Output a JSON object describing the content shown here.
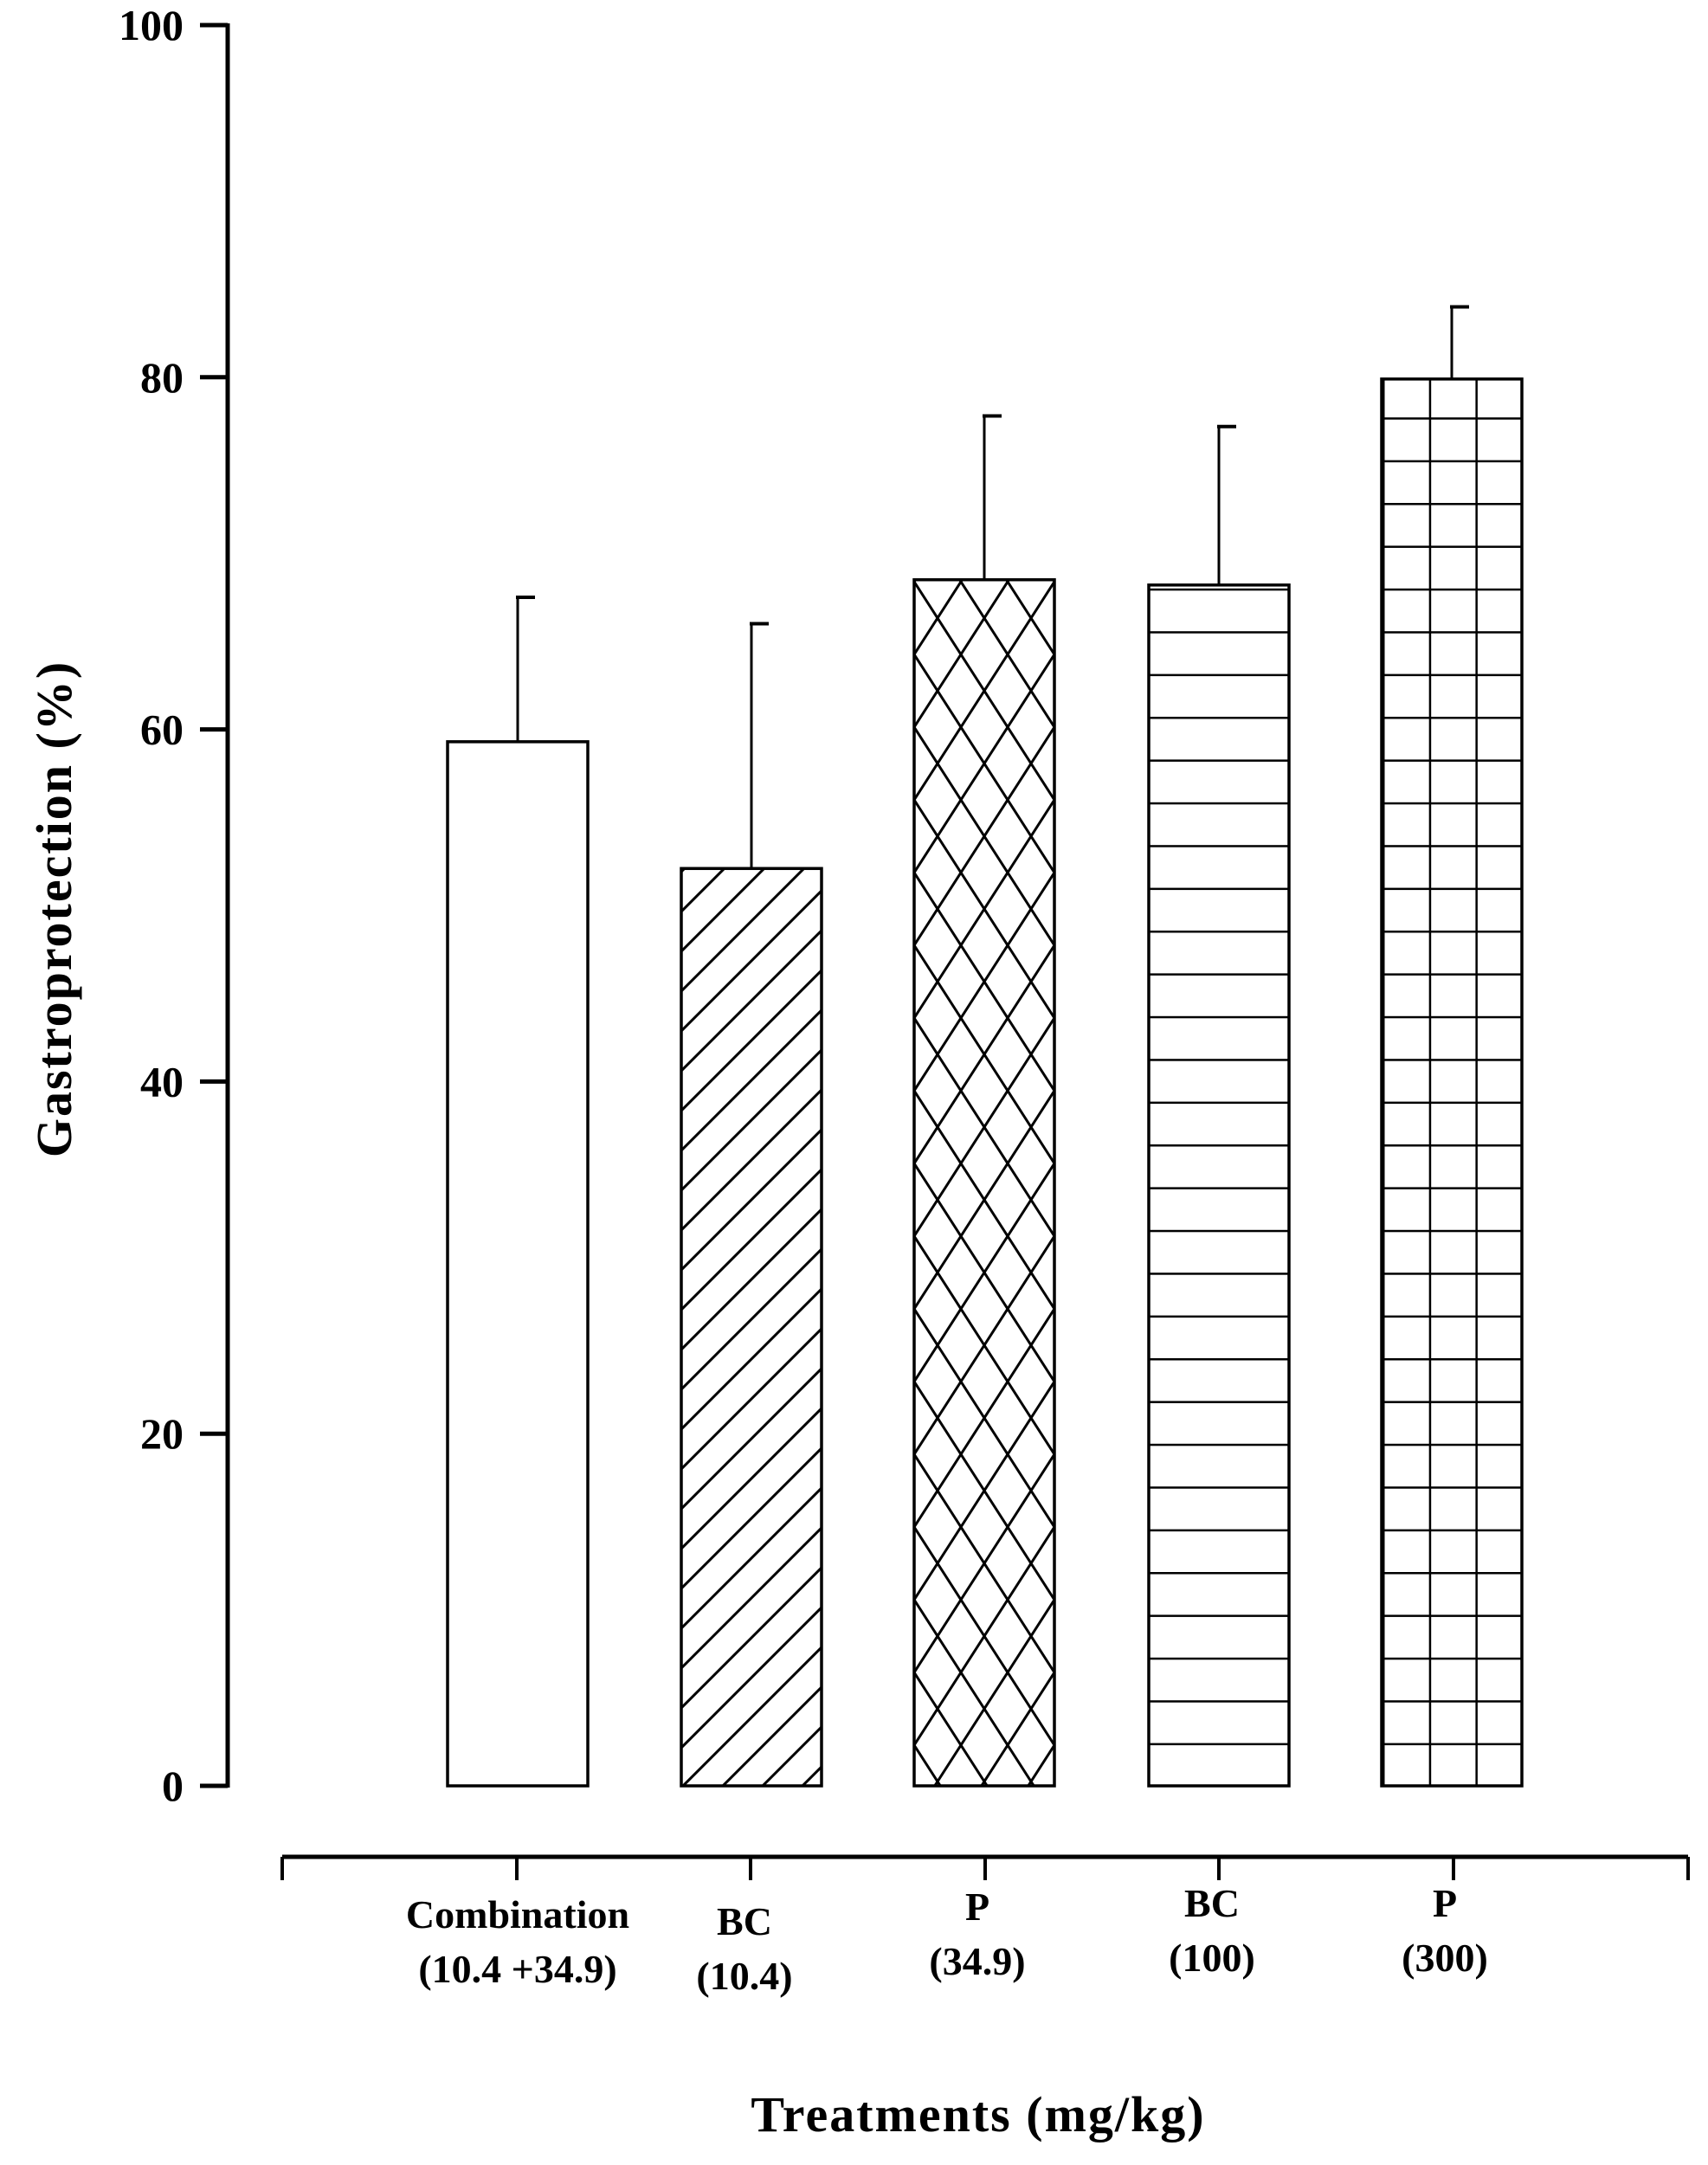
{
  "chart_data": {
    "type": "bar",
    "title": "",
    "xlabel": "Treatments (mg/kg)",
    "ylabel": "Gastroprotection (%)",
    "ylim": [
      0,
      100
    ],
    "yticks": [
      "0",
      "20",
      "40",
      "60",
      "80",
      "100"
    ],
    "grid": false,
    "categories": [
      [
        "Combination",
        "(10.4 +34.9)"
      ],
      [
        "BC",
        "(10.4)"
      ],
      [
        "P",
        "(34.9)"
      ],
      [
        "BC",
        "(100)"
      ],
      [
        "P",
        "(300)"
      ]
    ],
    "values": [
      59.3,
      52.1,
      68.5,
      68.2,
      79.9
    ],
    "error_upper": [
      67.5,
      66.0,
      77.8,
      77.2,
      84.0
    ],
    "fill_patterns": [
      "none",
      "diagonal",
      "crosshatch",
      "horizontal",
      "grid"
    ],
    "colors": {
      "ink": "#000000",
      "background": "#ffffff"
    }
  }
}
